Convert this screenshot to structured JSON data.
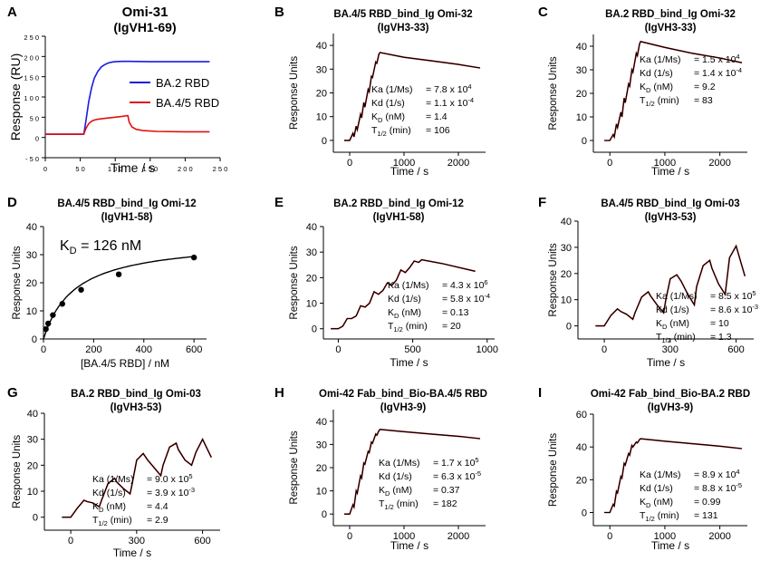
{
  "chart_data": [
    {
      "id": "A",
      "type": "line",
      "panel_letter": "A",
      "title": "Omi-31",
      "subtitle": "(IgVH1-69)",
      "xlabel": "Time / s",
      "ylabel": "Response (RU)",
      "xlim": [
        0,
        250
      ],
      "ylim": [
        -50,
        250
      ],
      "xticks": [
        0,
        50,
        100,
        150,
        200,
        250
      ],
      "yticks": [
        -50,
        0,
        50,
        100,
        150,
        200,
        250
      ],
      "x_tick_labels": [
        "0",
        "5 0",
        "1 0 0",
        "1 5 0",
        "2 0 0",
        "2 5 0"
      ],
      "y_tick_labels": [
        "- 5 0",
        "0",
        "5 0",
        "1 0 0",
        "1 5 0",
        "2 0 0",
        "2 5 0"
      ],
      "legend_position": "center-right",
      "colors": {
        "BA.2 RBD": "#1a1adf",
        "BA.4/5 RBD": "#e01010"
      },
      "series": [
        {
          "name": "BA.2 RBD",
          "x": [
            0,
            55,
            58,
            62,
            66,
            70,
            75,
            80,
            85,
            90,
            95,
            100,
            110,
            120,
            150,
            200,
            235
          ],
          "y": [
            8,
            8,
            40,
            88,
            122,
            146,
            163,
            174,
            180,
            184,
            186,
            187,
            188,
            188,
            187,
            187,
            187
          ]
        },
        {
          "name": "BA.4/5 RBD",
          "x": [
            0,
            55,
            58,
            62,
            66,
            70,
            75,
            80,
            90,
            100,
            110,
            118,
            120,
            124,
            130,
            140,
            160,
            200,
            235
          ],
          "y": [
            8,
            8,
            22,
            34,
            40,
            43,
            45,
            46,
            48,
            50,
            52,
            54,
            38,
            26,
            20,
            17,
            15,
            14,
            14
          ]
        }
      ]
    },
    {
      "id": "B",
      "type": "line",
      "panel_letter": "B",
      "title": "BA.4/5 RBD_bind_Ig Omi-32",
      "subtitle": "(IgVH3-33)",
      "xlabel": "Time / s",
      "ylabel": "Response Units",
      "xlim": [
        -300,
        2500
      ],
      "ylim": [
        -5,
        45
      ],
      "xticks": [
        0,
        1000,
        2000
      ],
      "yticks": [
        0,
        10,
        20,
        30,
        40
      ],
      "x_tick_labels": [
        "0",
        "1000",
        "2000"
      ],
      "y_tick_labels": [
        "0",
        "10",
        "20",
        "30",
        "40"
      ],
      "kinetics": [
        {
          "label": "Ka (1/Ms)",
          "value": "= 7.8 x 10",
          "exp": "4"
        },
        {
          "label": "Kd (1/s)",
          "value": "= 1.1 x 10",
          "exp": "-4"
        },
        {
          "label": "K",
          "sub": "D",
          "unit": " (nM)",
          "value": "= 1.4"
        },
        {
          "label": "T",
          "sub": "1/2",
          "unit": " (min)",
          "value": "= 106"
        }
      ],
      "series": [
        {
          "x": [
            -100,
            0,
            60,
            80,
            120,
            140,
            200,
            220,
            260,
            280,
            340,
            360,
            400,
            420,
            480,
            500,
            540,
            560,
            1000,
            1500,
            2000,
            2400
          ],
          "y": [
            0,
            0,
            3,
            1.5,
            6,
            4.5,
            11,
            9.5,
            16,
            14,
            21.5,
            20.5,
            27,
            26.5,
            33,
            32.5,
            36.5,
            37,
            35,
            33.5,
            32,
            30.5
          ]
        }
      ]
    },
    {
      "id": "C",
      "type": "line",
      "panel_letter": "C",
      "title": "BA.2 RBD_bind_Ig Omi-32",
      "subtitle": "(IgVH3-33)",
      "xlabel": "Time / s",
      "ylabel": "Response Units",
      "xlim": [
        -300,
        2500
      ],
      "ylim": [
        -5,
        45
      ],
      "xticks": [
        0,
        1000,
        2000
      ],
      "yticks": [
        0,
        10,
        20,
        30,
        40
      ],
      "x_tick_labels": [
        "0",
        "1000",
        "2000"
      ],
      "y_tick_labels": [
        "0",
        "10",
        "20",
        "30",
        "40"
      ],
      "kinetics": [
        {
          "label": "Ka (1/Ms)",
          "value": "= 1.5 x 10",
          "exp": "4"
        },
        {
          "label": "Kd (1/s)",
          "value": "= 1.4 x 10",
          "exp": "-4"
        },
        {
          "label": "K",
          "sub": "D",
          "unit": " (nM)",
          "value": "= 9.2"
        },
        {
          "label": "T",
          "sub": "1/2",
          "unit": " (min)",
          "value": "= 83"
        }
      ],
      "series": [
        {
          "x": [
            -100,
            0,
            60,
            80,
            120,
            140,
            200,
            220,
            260,
            280,
            340,
            360,
            400,
            420,
            480,
            500,
            540,
            560,
            1000,
            1500,
            2000,
            2400
          ],
          "y": [
            0,
            0,
            2.5,
            1.5,
            7,
            5.5,
            12,
            10,
            18,
            16,
            24,
            23,
            30,
            29,
            37,
            36,
            41,
            42,
            39.5,
            37,
            35,
            33
          ]
        }
      ]
    },
    {
      "id": "D",
      "type": "scatter",
      "panel_letter": "D",
      "title": "BA.4/5 RBD_bind_Ig Omi-12",
      "subtitle": "(IgVH1-58)",
      "xlabel": "[BA.4/5 RBD] / nM",
      "ylabel": "Response Units",
      "xlim": [
        0,
        650
      ],
      "ylim": [
        0,
        40
      ],
      "xticks": [
        0,
        200,
        400,
        600
      ],
      "yticks": [
        0,
        10,
        20,
        30,
        40
      ],
      "x_tick_labels": [
        "0",
        "200",
        "400",
        "600"
      ],
      "y_tick_labels": [
        "0",
        "10",
        "20",
        "30",
        "40"
      ],
      "annotation": {
        "main": "K",
        "sub": "D",
        "rest": " = 126 nM"
      },
      "points": {
        "x": [
          9.4,
          18.75,
          37.5,
          75,
          150,
          300,
          600
        ],
        "y": [
          3.5,
          5.5,
          8.5,
          12.5,
          17.5,
          23,
          29
        ]
      },
      "fit": {
        "model": "Rmax*x/(KD+x)",
        "Rmax": 35.5,
        "KD": 126
      }
    },
    {
      "id": "E",
      "type": "line",
      "panel_letter": "E",
      "title": "BA.2 RBD_bind_Ig Omi-12",
      "subtitle": "(IgVH1-58)",
      "xlabel": "Time / s",
      "ylabel": "Response Units",
      "xlim": [
        -100,
        1050
      ],
      "ylim": [
        -4,
        40
      ],
      "xticks": [
        0,
        500,
        1000
      ],
      "yticks": [
        0,
        10,
        20,
        30,
        40
      ],
      "x_tick_labels": [
        "0",
        "500",
        "1000"
      ],
      "y_tick_labels": [
        "0",
        "10",
        "20",
        "30",
        "40"
      ],
      "kinetics": [
        {
          "label": "Ka (1/Ms)",
          "value": "= 4.3 x 10",
          "exp": "6"
        },
        {
          "label": "Kd (1/s)",
          "value": "= 5.8 x 10",
          "exp": "-4"
        },
        {
          "label": "K",
          "sub": "D",
          "unit": " (nM)",
          "value": "= 0.13"
        },
        {
          "label": "T",
          "sub": "1/2",
          "unit": " (min)",
          "value": "= 20"
        }
      ],
      "series": [
        {
          "x": [
            -50,
            0,
            30,
            60,
            90,
            120,
            150,
            180,
            210,
            240,
            270,
            300,
            330,
            360,
            390,
            420,
            450,
            480,
            510,
            540,
            560,
            700,
            920
          ],
          "y": [
            0,
            0,
            1,
            4,
            4,
            5,
            9,
            8.5,
            10,
            14.5,
            13.5,
            15,
            18,
            17,
            19,
            23,
            22,
            24,
            26.5,
            26,
            27,
            25.5,
            22.5
          ]
        }
      ]
    },
    {
      "id": "F",
      "type": "line",
      "panel_letter": "F",
      "title": "BA.4/5 RBD_bind_Ig Omi-03",
      "subtitle": "(IgVH3-53)",
      "xlabel": "Time / s",
      "ylabel": "Response Units",
      "xlim": [
        -120,
        680
      ],
      "ylim": [
        -5,
        40
      ],
      "xticks": [
        0,
        300,
        600
      ],
      "yticks": [
        0,
        10,
        20,
        30,
        40
      ],
      "x_tick_labels": [
        "0",
        "300",
        "600"
      ],
      "y_tick_labels": [
        "0",
        "10",
        "20",
        "30",
        "40"
      ],
      "kinetics": [
        {
          "label": "Ka (1/Ms)",
          "value": "= 8.5 x 10",
          "exp": "5"
        },
        {
          "label": "Kd (1/s)",
          "value": "= 8.6 x 10",
          "exp": "-3"
        },
        {
          "label": "K",
          "sub": "D",
          "unit": " (nM)",
          "value": "= 10"
        },
        {
          "label": "T",
          "sub": "1/2",
          "unit": " (min)",
          "value": "= 1.3"
        }
      ],
      "series": [
        {
          "x": [
            -40,
            0,
            30,
            60,
            75,
            100,
            130,
            140,
            170,
            200,
            210,
            240,
            270,
            280,
            300,
            330,
            350,
            380,
            410,
            420,
            450,
            480,
            490,
            520,
            550,
            570,
            600,
            640
          ],
          "y": [
            0,
            0,
            4,
            6.5,
            5.5,
            4.5,
            2.5,
            5,
            11,
            13,
            11.5,
            8,
            5,
            10,
            18,
            19.5,
            17,
            12,
            8,
            15,
            23,
            25,
            22,
            16,
            12,
            26,
            30.5,
            19
          ]
        }
      ]
    },
    {
      "id": "G",
      "type": "line",
      "panel_letter": "G",
      "title": "BA.2 RBD_bind_Ig Omi-03",
      "subtitle": "(IgVH3-53)",
      "xlabel": "Time / s",
      "ylabel": "Response Units",
      "xlim": [
        -120,
        680
      ],
      "ylim": [
        -5,
        40
      ],
      "xticks": [
        0,
        300,
        600
      ],
      "yticks": [
        0,
        10,
        20,
        30,
        40
      ],
      "x_tick_labels": [
        "0",
        "300",
        "600"
      ],
      "y_tick_labels": [
        "0",
        "10",
        "20",
        "30",
        "40"
      ],
      "kinetics": [
        {
          "label": "Ka (1/Ms)",
          "value": "= 9.0 x 10",
          "exp": "5"
        },
        {
          "label": "Kd (1/s)",
          "value": "= 3.9 x 10",
          "exp": "-3"
        },
        {
          "label": "K",
          "sub": "D",
          "unit": " (nM)",
          "value": "= 4.4"
        },
        {
          "label": "T",
          "sub": "1/2",
          "unit": " (min)",
          "value": "= 2.9"
        }
      ],
      "series": [
        {
          "x": [
            -40,
            0,
            30,
            60,
            75,
            100,
            130,
            140,
            170,
            200,
            210,
            240,
            270,
            280,
            300,
            330,
            350,
            380,
            410,
            420,
            450,
            480,
            490,
            520,
            550,
            570,
            600,
            640
          ],
          "y": [
            0,
            0,
            3.5,
            6.5,
            6,
            5.5,
            4,
            6.5,
            13,
            15,
            13.5,
            11,
            9,
            13,
            22,
            24.5,
            22,
            19,
            16,
            20,
            27,
            28.5,
            26,
            22,
            20,
            25,
            30,
            23
          ]
        }
      ]
    },
    {
      "id": "H",
      "type": "line",
      "panel_letter": "H",
      "title": "Omi-42 Fab_bind_Bio-BA.4/5 RBD",
      "subtitle": "(IgVH3-9)",
      "xlabel": "Time / s",
      "ylabel": "Response Units",
      "xlim": [
        -300,
        2500
      ],
      "ylim": [
        -5,
        45
      ],
      "xticks": [
        0,
        1000,
        2000
      ],
      "yticks": [
        0,
        10,
        20,
        30,
        40
      ],
      "x_tick_labels": [
        "0",
        "1000",
        "2000"
      ],
      "y_tick_labels": [
        "0",
        "10",
        "20",
        "30",
        "40"
      ],
      "kinetics": [
        {
          "label": "Ka (1/Ms)",
          "value": "= 1.7 x 10",
          "exp": "5"
        },
        {
          "label": "Kd (1/s)",
          "value": "= 6.3 x 10",
          "exp": "-5"
        },
        {
          "label": "K",
          "sub": "D",
          "unit": " (nM)",
          "value": "= 0.37"
        },
        {
          "label": "T",
          "sub": "1/2",
          "unit": " (min)",
          "value": "= 182"
        }
      ],
      "series": [
        {
          "x": [
            -100,
            0,
            60,
            80,
            120,
            140,
            200,
            220,
            260,
            280,
            340,
            360,
            400,
            420,
            480,
            500,
            540,
            560,
            1000,
            1500,
            2000,
            2400
          ],
          "y": [
            0,
            0,
            4,
            3,
            10,
            9,
            16.5,
            15.5,
            22,
            21.5,
            27,
            26.5,
            31,
            30.5,
            34.5,
            34,
            36,
            36.5,
            35.5,
            34.5,
            33.5,
            32.5
          ]
        }
      ]
    },
    {
      "id": "I",
      "type": "line",
      "panel_letter": "I",
      "title": "Omi-42 Fab_bind_Bio-BA.2 RBD",
      "subtitle": "(IgVH3-9)",
      "xlabel": "Time / s",
      "ylabel": "Response Units",
      "xlim": [
        -300,
        2500
      ],
      "ylim": [
        -8,
        60
      ],
      "xticks": [
        0,
        1000,
        2000
      ],
      "yticks": [
        0,
        20,
        40,
        60
      ],
      "x_tick_labels": [
        "0",
        "1000",
        "2000"
      ],
      "y_tick_labels": [
        "0",
        "20",
        "40",
        "60"
      ],
      "kinetics": [
        {
          "label": "Ka (1/Ms)",
          "value": "= 8.9 x 10",
          "exp": "4"
        },
        {
          "label": "Kd (1/s)",
          "value": "= 8.8 x 10",
          "exp": "-5"
        },
        {
          "label": "K",
          "sub": "D",
          "unit": " (nM)",
          "value": "= 0.99"
        },
        {
          "label": "T",
          "sub": "1/2",
          "unit": " (min)",
          "value": "= 131"
        }
      ],
      "series": [
        {
          "x": [
            -100,
            0,
            60,
            80,
            120,
            140,
            200,
            220,
            260,
            280,
            340,
            360,
            400,
            420,
            480,
            500,
            540,
            560,
            1000,
            1500,
            2000,
            2400
          ],
          "y": [
            0,
            0,
            5,
            4,
            13,
            12,
            22,
            21,
            30,
            29,
            36,
            35,
            41,
            40,
            43,
            42.5,
            44.5,
            45,
            43.5,
            42,
            40.5,
            39
          ]
        }
      ]
    }
  ]
}
